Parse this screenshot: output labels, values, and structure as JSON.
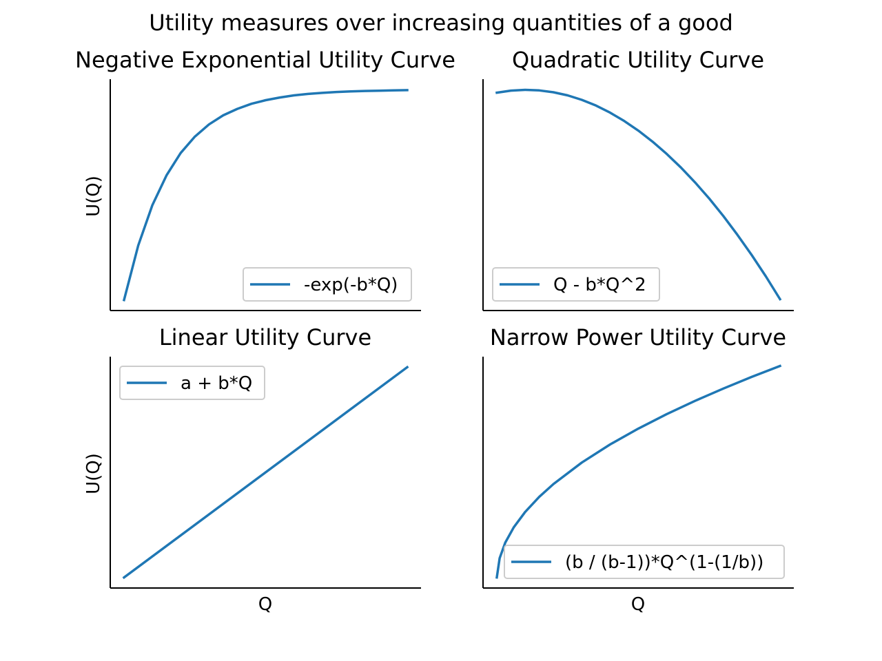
{
  "figure": {
    "suptitle": "Utility measures over increasing quantities of a good"
  },
  "colors": {
    "series": "#1f77b4",
    "axis": "#000000",
    "legend_border": "#cccccc"
  },
  "chart_data": [
    {
      "type": "line",
      "title": "Negative Exponential Utility Curve",
      "xlabel": "",
      "ylabel": "U(Q)",
      "xticks": "hidden",
      "yticks": "hidden",
      "grid": false,
      "legend_position": "lower right",
      "x": [
        0,
        0.5,
        1,
        1.5,
        2,
        2.5,
        3,
        3.5,
        4,
        4.5,
        5,
        5.5,
        6,
        6.5,
        7,
        7.5,
        8,
        8.5,
        9,
        9.5,
        10
      ],
      "series": [
        {
          "name": "-exp(-b*Q)",
          "y": [
            -1,
            -0.741,
            -0.549,
            -0.407,
            -0.301,
            -0.223,
            -0.165,
            -0.122,
            -0.091,
            -0.067,
            -0.05,
            -0.037,
            -0.027,
            -0.02,
            -0.015,
            -0.011,
            -0.008,
            -0.006,
            -0.005,
            -0.003,
            -0.002
          ]
        }
      ],
      "ylim": [
        -1.05,
        0.05
      ]
    },
    {
      "type": "line",
      "title": "Quadratic Utility Curve",
      "xlabel": "",
      "ylabel": "",
      "xticks": "hidden",
      "yticks": "hidden",
      "grid": false,
      "legend_position": "lower left",
      "x": [
        0,
        0.5,
        1,
        1.5,
        2,
        2.5,
        3,
        3.5,
        4,
        4.5,
        5,
        5.5,
        6,
        6.5,
        7,
        7.5,
        8,
        8.5,
        9,
        9.5,
        10
      ],
      "series": [
        {
          "name": "Q - b*Q^2",
          "y": [
            0.88,
            0.968,
            1.0,
            0.978,
            0.9,
            0.768,
            0.58,
            0.338,
            0.04,
            -0.313,
            -0.72,
            -1.183,
            -1.7,
            -2.273,
            -2.9,
            -3.583,
            -4.32,
            -5.113,
            -5.96,
            -6.863,
            -7.82
          ]
        }
      ],
      "ylim": [
        -8.3,
        1.45
      ]
    },
    {
      "type": "line",
      "title": "Linear Utility Curve",
      "xlabel": "Q",
      "ylabel": "U(Q)",
      "xticks": "hidden",
      "yticks": "hidden",
      "grid": false,
      "legend_position": "upper left",
      "x": [
        0,
        10
      ],
      "series": [
        {
          "name": "a + b*Q",
          "y": [
            0,
            10
          ]
        }
      ],
      "ylim": [
        -0.5,
        10.5
      ]
    },
    {
      "type": "line",
      "title": "Narrow Power Utility Curve",
      "xlabel": "Q",
      "ylabel": "",
      "xticks": "hidden",
      "yticks": "hidden",
      "grid": false,
      "legend_position": "lower right",
      "x": [
        0.001,
        0.1,
        0.3,
        0.6,
        1,
        1.5,
        2,
        3,
        4,
        5,
        6,
        7,
        8,
        9,
        10
      ],
      "series": [
        {
          "name": "(b / (b-1))*Q^(1-(1/b))",
          "y": [
            0.063,
            0.632,
            1.095,
            1.549,
            2.0,
            2.449,
            2.828,
            3.464,
            4.0,
            4.472,
            4.899,
            5.292,
            5.657,
            6.0,
            6.325
          ]
        }
      ],
      "ylim": [
        -0.25,
        6.6
      ]
    }
  ]
}
